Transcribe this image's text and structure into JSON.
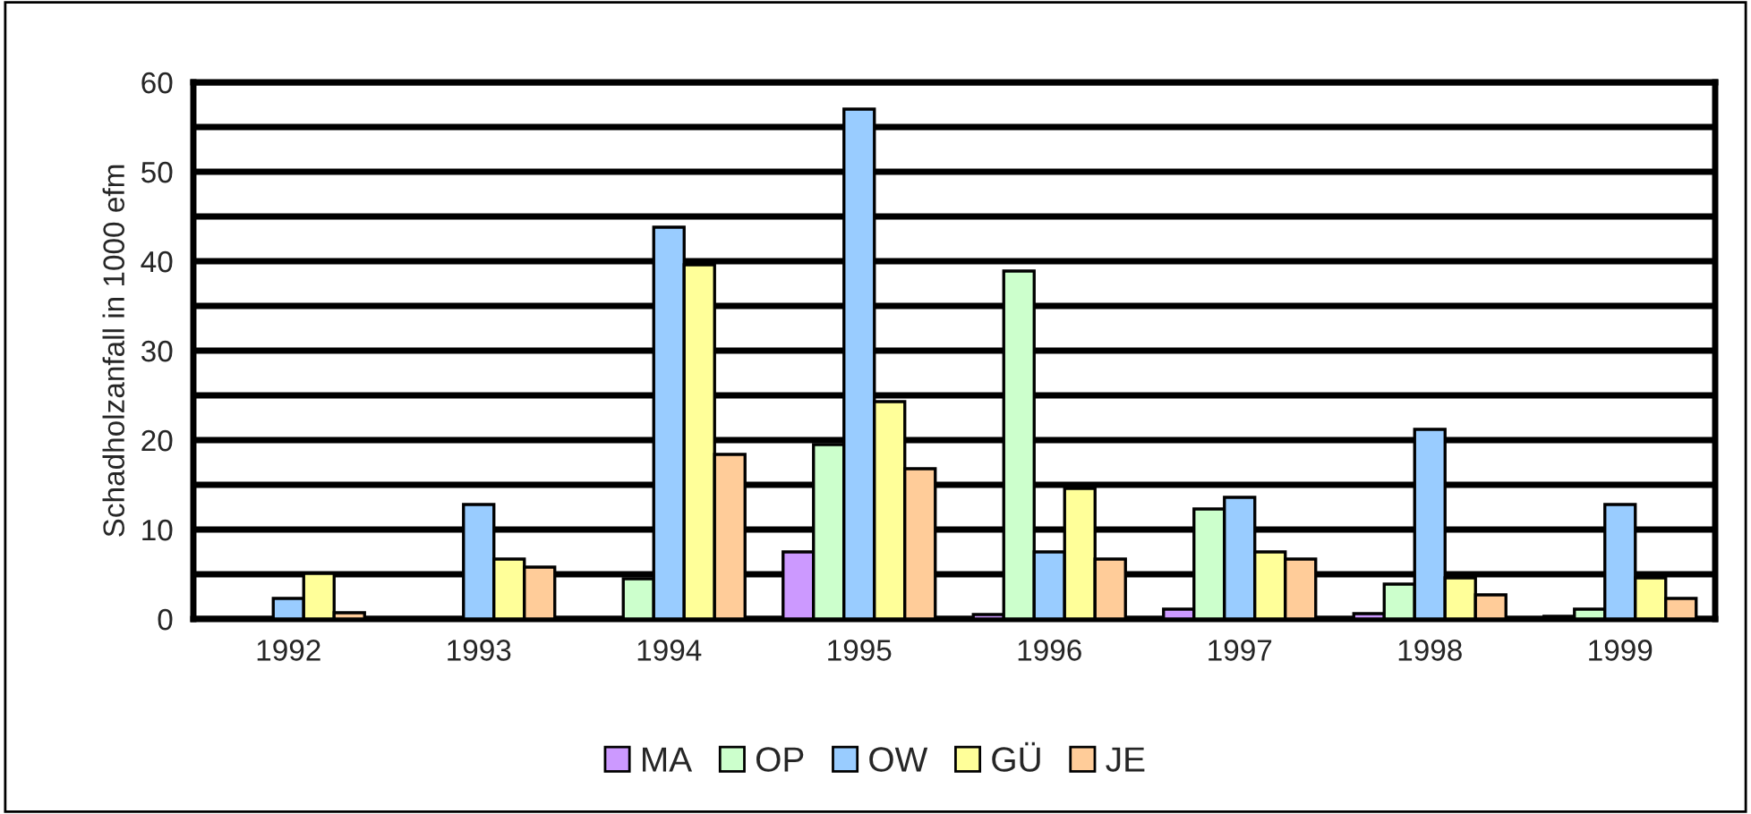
{
  "chart_data": {
    "type": "bar",
    "ylabel": "Schadholzanfall in 1000 efm",
    "categories": [
      "1992",
      "1993",
      "1994",
      "1995",
      "1996",
      "1997",
      "1998",
      "1999"
    ],
    "series": [
      {
        "name": "MA",
        "color": "#cc99ff",
        "values": [
          null,
          null,
          null,
          7.5,
          0.5,
          1.1,
          0.6,
          0.3
        ]
      },
      {
        "name": "OP",
        "color": "#ccffcc",
        "values": [
          null,
          null,
          4.5,
          19.5,
          38.9,
          12.3,
          3.9,
          1.1
        ]
      },
      {
        "name": "OW",
        "color": "#99ccff",
        "values": [
          2.3,
          12.8,
          43.8,
          57,
          7.5,
          13.6,
          21.2,
          12.8
        ]
      },
      {
        "name": "GÜ",
        "color": "#ffff99",
        "values": [
          5.1,
          6.7,
          39.6,
          24.3,
          14.6,
          7.5,
          4.6,
          4.6
        ]
      },
      {
        "name": "JE",
        "color": "#ffcc99",
        "values": [
          0.7,
          5.8,
          18.4,
          16.8,
          6.7,
          6.7,
          2.7,
          2.3
        ]
      }
    ],
    "ylim": [
      0,
      60
    ],
    "yticks": [
      0,
      {
        "value": 5,
        "label": null
      },
      10,
      {
        "value": 15,
        "label": null
      },
      20,
      {
        "value": 25,
        "label": null
      },
      30,
      {
        "value": 35,
        "label": null
      },
      40,
      {
        "value": 45,
        "label": null
      },
      50,
      {
        "value": 55,
        "label": null
      },
      60
    ],
    "grid": "y",
    "legend": "bottom"
  }
}
